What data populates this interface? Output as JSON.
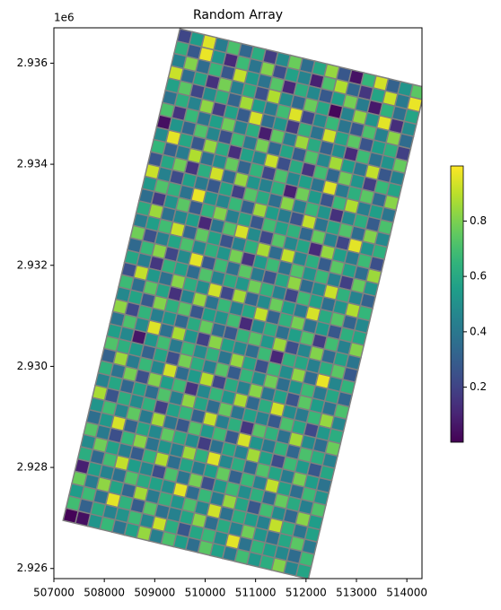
{
  "chart_data": {
    "type": "heatmap",
    "title": "Random Array",
    "y_offset_text": "1e6",
    "xlim": [
      507000,
      514300
    ],
    "ylim": [
      2925800,
      2936700
    ],
    "xticks": [
      507000,
      508000,
      509000,
      510000,
      511000,
      512000,
      513000,
      514000
    ],
    "yticks": [
      {
        "value": 2926000,
        "label": "2.926"
      },
      {
        "value": 2928000,
        "label": "2.928"
      },
      {
        "value": 2930000,
        "label": "2.930"
      },
      {
        "value": 2932000,
        "label": "2.932"
      },
      {
        "value": 2934000,
        "label": "2.934"
      },
      {
        "value": 2936000,
        "label": "2.936"
      }
    ],
    "origin": [
      509500,
      2936680
    ],
    "cell_size": 250,
    "rotation": 13.4,
    "edgecolor": "#808080",
    "colormap": "viridis",
    "clim": [
      0.001,
      0.999
    ],
    "colorbar_ticks": [
      0.2,
      0.4,
      0.6,
      0.8
    ],
    "values": [
      [
        0.21,
        0.55,
        0.95,
        0.42,
        0.71,
        0.33,
        0.62,
        0.18,
        0.48,
        0.77,
        0.36,
        0.59,
        0.84,
        0.27,
        0.05,
        0.66,
        0.93,
        0.31,
        0.52,
        0.74
      ],
      [
        0.63,
        0.28,
        0.97,
        0.52,
        0.12,
        0.68,
        0.39,
        0.81,
        0.24,
        0.57,
        0.45,
        0.09,
        0.71,
        0.88,
        0.33,
        0.16,
        0.58,
        0.92,
        0.41,
        0.97
      ],
      [
        0.44,
        0.81,
        0.35,
        0.66,
        0.27,
        0.91,
        0.54,
        0.38,
        0.73,
        0.11,
        0.62,
        0.47,
        0.28,
        0.56,
        0.79,
        0.42,
        0.07,
        0.64,
        0.37,
        0.58
      ],
      [
        0.92,
        0.36,
        0.58,
        0.14,
        0.79,
        0.43,
        0.61,
        0.25,
        0.88,
        0.49,
        0.34,
        0.77,
        0.59,
        0.02,
        0.45,
        0.83,
        0.52,
        0.96,
        0.13,
        0.48
      ],
      [
        0.57,
        0.74,
        0.21,
        0.49,
        0.63,
        0.32,
        0.86,
        0.55,
        0.41,
        0.69,
        0.95,
        0.22,
        0.48,
        0.67,
        0.39,
        0.28,
        0.71,
        0.44,
        0.82,
        0.35
      ],
      [
        0.38,
        0.62,
        0.45,
        0.83,
        0.18,
        0.57,
        0.29,
        0.94,
        0.36,
        0.52,
        0.17,
        0.64,
        0.38,
        0.93,
        0.58,
        0.74,
        0.26,
        0.55,
        0.63,
        0.19
      ],
      [
        0.71,
        0.15,
        0.67,
        0.39,
        0.56,
        0.78,
        0.44,
        0.62,
        0.08,
        0.75,
        0.43,
        0.85,
        0.61,
        0.31,
        0.49,
        0.12,
        0.68,
        0.37,
        0.51,
        0.76
      ],
      [
        0.04,
        0.52,
        0.33,
        0.72,
        0.46,
        0.25,
        0.68,
        0.41,
        0.79,
        0.34,
        0.58,
        0.29,
        0.72,
        0.47,
        0.86,
        0.55,
        0.39,
        0.91,
        0.27,
        0.44
      ],
      [
        0.48,
        0.96,
        0.59,
        0.27,
        0.84,
        0.61,
        0.13,
        0.57,
        0.46,
        0.92,
        0.24,
        0.61,
        0.15,
        0.69,
        0.33,
        0.78,
        0.52,
        0.18,
        0.67,
        0.58
      ],
      [
        0.66,
        0.31,
        0.42,
        0.88,
        0.37,
        0.49,
        0.76,
        0.32,
        0.65,
        0.21,
        0.71,
        0.47,
        0.56,
        0.38,
        0.95,
        0.41,
        0.63,
        0.74,
        0.35,
        0.82
      ],
      [
        0.27,
        0.59,
        0.78,
        0.15,
        0.62,
        0.93,
        0.35,
        0.84,
        0.52,
        0.44,
        0.63,
        0.09,
        0.78,
        0.54,
        0.26,
        0.67,
        0.88,
        0.43,
        0.56,
        0.39
      ],
      [
        0.92,
        0.44,
        0.23,
        0.56,
        0.41,
        0.28,
        0.58,
        0.19,
        0.73,
        0.61,
        0.36,
        0.82,
        0.43,
        0.67,
        0.51,
        0.14,
        0.47,
        0.62,
        0.29,
        0.71
      ],
      [
        0.53,
        0.72,
        0.64,
        0.38,
        0.97,
        0.52,
        0.46,
        0.67,
        0.31,
        0.85,
        0.55,
        0.42,
        0.26,
        0.91,
        0.38,
        0.59,
        0.72,
        0.35,
        0.81,
        0.47
      ],
      [
        0.36,
        0.18,
        0.51,
        0.74,
        0.29,
        0.64,
        0.81,
        0.43,
        0.58,
        0.27,
        0.69,
        0.57,
        0.64,
        0.33,
        0.76,
        0.45,
        0.21,
        0.96,
        0.52,
        0.63
      ],
      [
        0.61,
        0.85,
        0.37,
        0.46,
        0.55,
        0.11,
        0.39,
        0.72,
        0.94,
        0.48,
        0.22,
        0.73,
        0.47,
        0.58,
        0.12,
        0.84,
        0.56,
        0.41,
        0.68,
        0.24
      ],
      [
        0.42,
        0.56,
        0.69,
        0.92,
        0.33,
        0.75,
        0.57,
        0.26,
        0.44,
        0.63,
        0.87,
        0.35,
        0.91,
        0.46,
        0.62,
        0.29,
        0.74,
        0.57,
        0.36,
        0.85
      ],
      [
        0.78,
        0.25,
        0.44,
        0.58,
        0.71,
        0.47,
        0.63,
        0.52,
        0.79,
        0.15,
        0.54,
        0.68,
        0.38,
        0.72,
        0.51,
        0.67,
        0.43,
        0.19,
        0.76,
        0.52
      ],
      [
        0.34,
        0.67,
        0.82,
        0.21,
        0.48,
        0.96,
        0.28,
        0.68,
        0.37,
        0.74,
        0.41,
        0.26,
        0.59,
        0.83,
        0.35,
        0.48,
        0.92,
        0.64,
        0.45,
        0.31
      ],
      [
        0.59,
        0.43,
        0.16,
        0.64,
        0.57,
        0.35,
        0.72,
        0.45,
        0.61,
        0.53,
        0.78,
        0.64,
        0.44,
        0.21,
        0.68,
        0.57,
        0.36,
        0.51,
        0.88,
        0.66
      ],
      [
        0.25,
        0.91,
        0.53,
        0.37,
        0.82,
        0.62,
        0.49,
        0.93,
        0.22,
        0.86,
        0.33,
        0.48,
        0.77,
        0.55,
        0.42,
        0.94,
        0.61,
        0.73,
        0.32,
        0.47
      ],
      [
        0.68,
        0.36,
        0.74,
        0.58,
        0.14,
        0.45,
        0.84,
        0.38,
        0.67,
        0.44,
        0.59,
        0.91,
        0.32,
        0.64,
        0.79,
        0.38,
        0.54,
        0.27,
        0.63,
        0.58
      ],
      [
        0.47,
        0.58,
        0.28,
        0.81,
        0.63,
        0.73,
        0.27,
        0.56,
        0.51,
        0.69,
        0.12,
        0.47,
        0.62,
        0.37,
        0.56,
        0.72,
        0.18,
        0.69,
        0.44,
        0.81
      ],
      [
        0.83,
        0.22,
        0.65,
        0.43,
        0.52,
        0.34,
        0.61,
        0.76,
        0.35,
        0.28,
        0.65,
        0.73,
        0.53,
        0.85,
        0.24,
        0.46,
        0.81,
        0.35,
        0.57,
        0.39
      ],
      [
        0.39,
        0.71,
        0.48,
        0.95,
        0.37,
        0.87,
        0.52,
        0.19,
        0.82,
        0.57,
        0.48,
        0.36,
        0.68,
        0.11,
        0.63,
        0.59,
        0.43,
        0.62,
        0.74,
        0.28
      ],
      [
        0.56,
        0.47,
        0.06,
        0.52,
        0.69,
        0.41,
        0.67,
        0.48,
        0.64,
        0.39,
        0.84,
        0.58,
        0.25,
        0.67,
        0.49,
        0.83,
        0.35,
        0.97,
        0.46,
        0.65
      ],
      [
        0.72,
        0.63,
        0.54,
        0.31,
        0.58,
        0.24,
        0.79,
        0.62,
        0.43,
        0.73,
        0.29,
        0.66,
        0.49,
        0.78,
        0.36,
        0.52,
        0.68,
        0.41,
        0.59,
        0.33
      ],
      [
        0.31,
        0.85,
        0.42,
        0.67,
        0.46,
        0.93,
        0.35,
        0.54,
        0.89,
        0.21,
        0.61,
        0.44,
        0.82,
        0.39,
        0.57,
        0.26,
        0.74,
        0.55,
        0.38,
        0.71
      ],
      [
        0.64,
        0.38,
        0.79,
        0.24,
        0.81,
        0.56,
        0.68,
        0.15,
        0.47,
        0.66,
        0.52,
        0.87,
        0.34,
        0.62,
        0.93,
        0.48,
        0.41,
        0.67,
        0.84,
        0.46
      ],
      [
        0.45,
        0.59,
        0.33,
        0.57,
        0.36,
        0.72,
        0.43,
        0.83,
        0.58,
        0.35,
        0.76,
        0.39,
        0.57,
        0.45,
        0.28,
        0.71,
        0.59,
        0.22,
        0.53,
        0.62
      ],
      [
        0.87,
        0.26,
        0.62,
        0.48,
        0.64,
        0.19,
        0.57,
        0.66,
        0.31,
        0.91,
        0.43,
        0.63,
        0.16,
        0.73,
        0.64,
        0.37,
        0.86,
        0.48,
        0.36,
        0.77
      ],
      [
        0.52,
        0.69,
        0.46,
        0.75,
        0.41,
        0.86,
        0.39,
        0.27,
        0.72,
        0.54,
        0.68,
        0.28,
        0.94,
        0.52,
        0.41,
        0.64,
        0.33,
        0.71,
        0.62,
        0.44
      ],
      [
        0.36,
        0.53,
        0.94,
        0.32,
        0.58,
        0.47,
        0.75,
        0.61,
        0.49,
        0.18,
        0.37,
        0.59,
        0.45,
        0.86,
        0.57,
        0.23,
        0.68,
        0.54,
        0.27,
        0.59
      ],
      [
        0.73,
        0.41,
        0.24,
        0.66,
        0.82,
        0.38,
        0.52,
        0.44,
        0.85,
        0.63,
        0.95,
        0.47,
        0.62,
        0.34,
        0.72,
        0.58,
        0.42,
        0.79,
        0.55,
        0.38
      ],
      [
        0.48,
        0.78,
        0.57,
        0.43,
        0.29,
        0.64,
        0.88,
        0.36,
        0.58,
        0.42,
        0.55,
        0.76,
        0.31,
        0.67,
        0.44,
        0.91,
        0.57,
        0.36,
        0.68,
        0.51
      ],
      [
        0.62,
        0.34,
        0.69,
        0.91,
        0.55,
        0.47,
        0.23,
        0.71,
        0.39,
        0.79,
        0.24,
        0.53,
        0.68,
        0.49,
        0.63,
        0.35,
        0.76,
        0.61,
        0.43,
        0.72
      ],
      [
        0.09,
        0.56,
        0.45,
        0.37,
        0.72,
        0.61,
        0.57,
        0.49,
        0.96,
        0.35,
        0.67,
        0.42,
        0.84,
        0.58,
        0.27,
        0.69,
        0.48,
        0.34,
        0.82,
        0.55
      ],
      [
        0.77,
        0.42,
        0.83,
        0.58,
        0.33,
        0.86,
        0.41,
        0.64,
        0.52,
        0.71,
        0.46,
        0.93,
        0.37,
        0.62,
        0.55,
        0.44,
        0.91,
        0.63,
        0.39,
        0.57
      ],
      [
        0.55,
        0.68,
        0.38,
        0.96,
        0.64,
        0.29,
        0.73,
        0.37,
        0.44,
        0.58,
        0.82,
        0.36,
        0.61,
        0.45,
        0.78,
        0.52,
        0.37,
        0.59,
        0.74,
        0.41
      ],
      [
        0.69,
        0.31,
        0.61,
        0.45,
        0.51,
        0.68,
        0.46,
        0.92,
        0.62,
        0.27,
        0.59,
        0.67,
        0.48,
        0.96,
        0.38,
        0.65,
        0.56,
        0.47,
        0.35,
        0.68
      ],
      [
        0.01,
        0.04,
        0.52,
        0.67,
        0.39,
        0.57,
        0.84,
        0.43,
        0.71,
        0.55,
        0.36,
        0.74,
        0.57,
        0.41,
        0.69,
        0.53,
        0.62,
        0.81,
        0.46,
        0.58
      ]
    ]
  }
}
